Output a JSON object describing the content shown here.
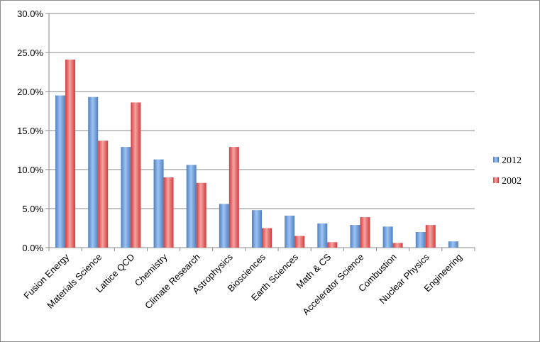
{
  "chart_data": {
    "type": "bar",
    "title": "",
    "xlabel": "",
    "ylabel": "",
    "ylim": [
      0,
      30
    ],
    "ytick_step": 5,
    "ytick_labels": [
      "0.0%",
      "5.0%",
      "10.0%",
      "15.0%",
      "20.0%",
      "25.0%",
      "30.0%"
    ],
    "grid": true,
    "legend_position": "right",
    "categories": [
      "Fusion Energy",
      "Materials Science",
      "Lattice QCD",
      "Chemistry",
      "Climate Research",
      "Astrophysics",
      "Biosciences",
      "Earth Sciences",
      "Math & CS",
      "Accelerator Science",
      "Combustion",
      "Nuclear Physics",
      "Engineering"
    ],
    "series": [
      {
        "name": "2012",
        "color": "#4f81bd",
        "values": [
          19.5,
          19.3,
          12.9,
          11.3,
          10.6,
          5.6,
          4.8,
          4.1,
          3.1,
          2.9,
          2.7,
          2.0,
          0.8
        ]
      },
      {
        "name": "2002",
        "color": "#e05555",
        "values": [
          24.1,
          13.7,
          18.6,
          9.0,
          8.3,
          12.9,
          2.5,
          1.5,
          0.7,
          3.9,
          0.6,
          2.9,
          0.0
        ]
      }
    ]
  }
}
